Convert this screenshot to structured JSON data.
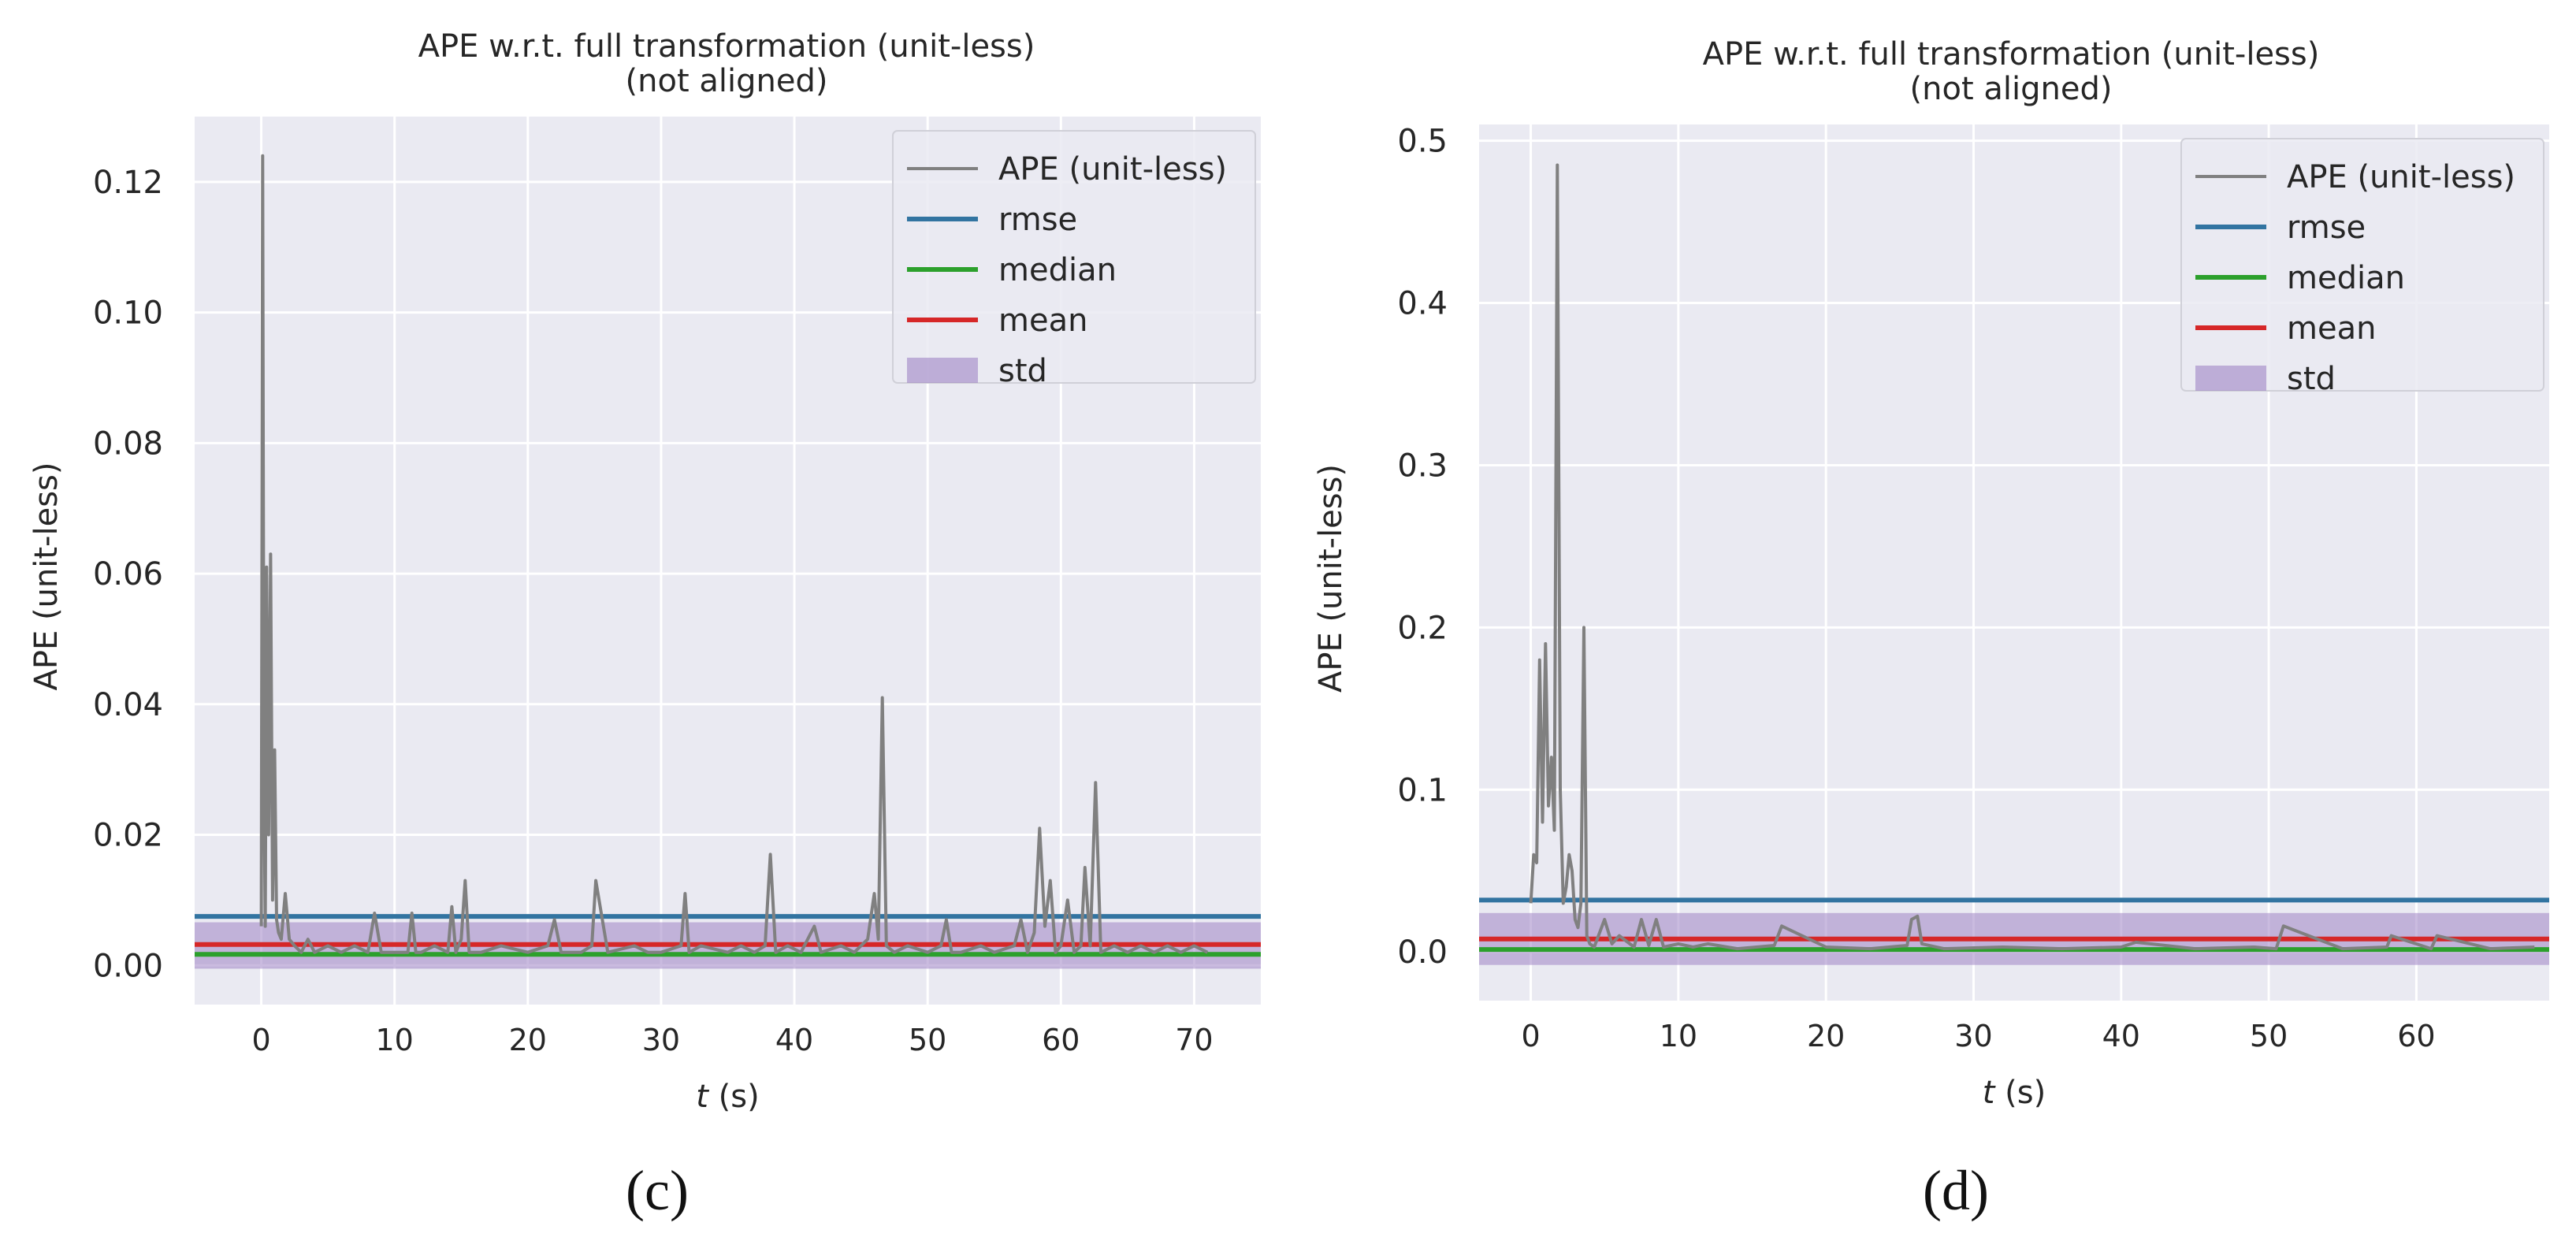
{
  "chart_data": [
    {
      "type": "line",
      "title": "APE w.r.t. full transformation (unit-less)",
      "subtitle": "(not aligned)",
      "xlabel_italic": "t",
      "xlabel_unit": "(s)",
      "ylabel": "APE (unit-less)",
      "xlim": [
        -5,
        75
      ],
      "ylim": [
        -0.006,
        0.13
      ],
      "xticks": [
        0,
        10,
        20,
        30,
        40,
        50,
        60,
        70
      ],
      "xtick_labels": [
        "0",
        "10",
        "20",
        "30",
        "40",
        "50",
        "60",
        "70"
      ],
      "yticks": [
        0.0,
        0.02,
        0.04,
        0.06,
        0.08,
        0.1,
        0.12
      ],
      "ytick_labels": [
        "0.00",
        "0.02",
        "0.04",
        "0.06",
        "0.08",
        "0.10",
        "0.12"
      ],
      "grid": true,
      "legend_position": "top-right",
      "legend": [
        "APE (unit-less)",
        "rmse",
        "median",
        "mean",
        "std"
      ],
      "stats": {
        "rmse": 0.0075,
        "median": 0.0017,
        "mean": 0.0032,
        "std_low": -0.0005,
        "std_high": 0.0066
      },
      "series": [
        {
          "name": "APE (unit-less)",
          "x": [
            0,
            0.1,
            0.2,
            0.3,
            0.4,
            0.55,
            0.7,
            0.85,
            1.0,
            1.15,
            1.3,
            1.5,
            1.8,
            2.1,
            2.5,
            3.0,
            3.5,
            4.0,
            5.0,
            6.0,
            7.0,
            8.0,
            8.5,
            9.0,
            10.0,
            11.0,
            11.3,
            11.6,
            12.0,
            13.0,
            14.0,
            14.3,
            14.6,
            15.0,
            15.3,
            15.6,
            16.5,
            18.0,
            20.0,
            21.5,
            22.0,
            22.5,
            24.0,
            24.8,
            25.1,
            26.0,
            28.0,
            29.0,
            30.0,
            31.5,
            31.8,
            32.1,
            33.0,
            35.0,
            36.0,
            37.0,
            37.8,
            38.2,
            38.6,
            39.5,
            40.5,
            41.5,
            42.0,
            43.5,
            44.5,
            45.5,
            46.0,
            46.3,
            46.6,
            46.9,
            47.5,
            48.5,
            50.0,
            51.0,
            51.4,
            51.8,
            52.5,
            54.0,
            55.0,
            56.5,
            57.0,
            57.5,
            58.0,
            58.4,
            58.8,
            59.2,
            59.6,
            60.0,
            60.5,
            61.0,
            61.5,
            61.8,
            62.2,
            62.6,
            63.0,
            64.0,
            65.0,
            66.0,
            67.0,
            68.0,
            69.0,
            70.0,
            71.0
          ],
          "y": [
            0.006,
            0.124,
            0.03,
            0.006,
            0.061,
            0.02,
            0.063,
            0.01,
            0.033,
            0.007,
            0.005,
            0.004,
            0.011,
            0.004,
            0.003,
            0.002,
            0.004,
            0.002,
            0.003,
            0.002,
            0.003,
            0.002,
            0.008,
            0.002,
            0.002,
            0.002,
            0.008,
            0.002,
            0.002,
            0.003,
            0.002,
            0.009,
            0.002,
            0.004,
            0.013,
            0.002,
            0.002,
            0.003,
            0.002,
            0.003,
            0.007,
            0.002,
            0.002,
            0.003,
            0.013,
            0.002,
            0.003,
            0.002,
            0.002,
            0.003,
            0.011,
            0.002,
            0.003,
            0.002,
            0.003,
            0.002,
            0.003,
            0.017,
            0.002,
            0.003,
            0.002,
            0.006,
            0.002,
            0.003,
            0.002,
            0.004,
            0.011,
            0.004,
            0.041,
            0.003,
            0.002,
            0.003,
            0.002,
            0.003,
            0.007,
            0.002,
            0.002,
            0.003,
            0.002,
            0.003,
            0.007,
            0.002,
            0.005,
            0.021,
            0.006,
            0.013,
            0.002,
            0.003,
            0.01,
            0.002,
            0.003,
            0.015,
            0.003,
            0.028,
            0.002,
            0.003,
            0.002,
            0.003,
            0.002,
            0.003,
            0.002,
            0.003,
            0.002
          ]
        }
      ]
    },
    {
      "type": "line",
      "title": "APE w.r.t. full transformation (unit-less)",
      "subtitle": "(not aligned)",
      "xlabel_italic": "t",
      "xlabel_unit": "(s)",
      "ylabel": "APE (unit-less)",
      "xlim": [
        -3.5,
        69
      ],
      "ylim": [
        -0.03,
        0.51
      ],
      "xticks": [
        0,
        10,
        20,
        30,
        40,
        50,
        60
      ],
      "xtick_labels": [
        "0",
        "10",
        "20",
        "30",
        "40",
        "50",
        "60"
      ],
      "yticks": [
        0.0,
        0.1,
        0.2,
        0.3,
        0.4,
        0.5
      ],
      "ytick_labels": [
        "0.0",
        "0.1",
        "0.2",
        "0.3",
        "0.4",
        "0.5"
      ],
      "grid": true,
      "legend_position": "top-right",
      "legend": [
        "APE (unit-less)",
        "rmse",
        "median",
        "mean",
        "std"
      ],
      "stats": {
        "rmse": 0.032,
        "median": 0.0015,
        "mean": 0.008,
        "std_low": -0.008,
        "std_high": 0.024
      },
      "series": [
        {
          "name": "APE (unit-less)",
          "x": [
            0,
            0.2,
            0.4,
            0.6,
            0.8,
            1.0,
            1.2,
            1.4,
            1.6,
            1.8,
            2.0,
            2.2,
            2.4,
            2.6,
            2.8,
            3.0,
            3.2,
            3.4,
            3.6,
            3.8,
            4.0,
            4.3,
            5.0,
            5.5,
            6.0,
            7.0,
            7.5,
            8.0,
            8.5,
            9.0,
            10.0,
            11.0,
            12.0,
            14.0,
            16.5,
            17.0,
            20.0,
            23.0,
            25.5,
            25.8,
            26.2,
            26.5,
            28.0,
            32.0,
            36.0,
            40.0,
            41.0,
            45.0,
            49.0,
            50.5,
            51.0,
            55.0,
            58.0,
            58.3,
            61.0,
            61.4,
            65.0,
            68.0
          ],
          "y": [
            0.03,
            0.06,
            0.055,
            0.18,
            0.08,
            0.19,
            0.09,
            0.12,
            0.075,
            0.485,
            0.1,
            0.03,
            0.04,
            0.06,
            0.05,
            0.02,
            0.015,
            0.03,
            0.2,
            0.01,
            0.005,
            0.003,
            0.02,
            0.005,
            0.01,
            0.003,
            0.02,
            0.004,
            0.02,
            0.003,
            0.005,
            0.003,
            0.005,
            0.002,
            0.004,
            0.016,
            0.003,
            0.002,
            0.004,
            0.02,
            0.022,
            0.005,
            0.002,
            0.003,
            0.002,
            0.003,
            0.006,
            0.002,
            0.003,
            0.002,
            0.016,
            0.002,
            0.003,
            0.01,
            0.002,
            0.01,
            0.002,
            0.003
          ]
        }
      ]
    }
  ],
  "captions": [
    "(c)",
    "(d)"
  ],
  "colors": {
    "plot_bg": "#eaeaf2",
    "grid": "#ffffff",
    "ape_line": "#808080",
    "rmse": "#3274a1",
    "median": "#2ca02c",
    "mean": "#d62728",
    "std_fill": "#9e84c5",
    "text": "#262626"
  }
}
